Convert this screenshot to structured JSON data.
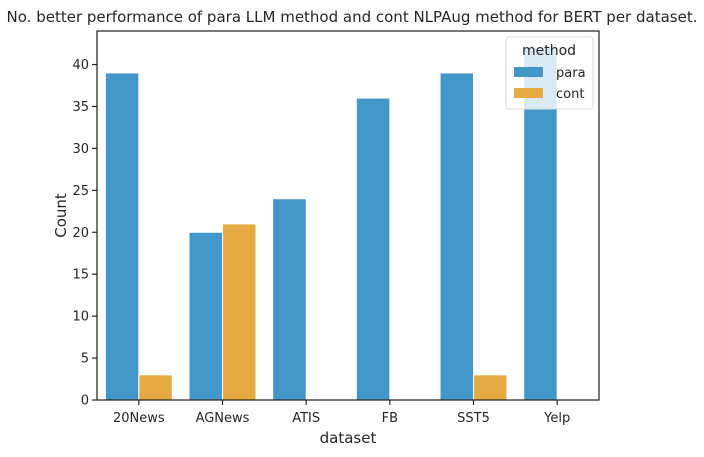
{
  "chart_data": {
    "type": "bar",
    "title": "No. better performance of para LLM method and cont NLPAug method for BERT per dataset.",
    "xlabel": "dataset",
    "ylabel": "Count",
    "categories": [
      "20News",
      "AGNews",
      "ATIS",
      "FB",
      "SST5",
      "Yelp"
    ],
    "series": [
      {
        "name": "para",
        "color": "#4097C8",
        "values": [
          39,
          20,
          24,
          36,
          39,
          42
        ]
      },
      {
        "name": "cont",
        "color": "#E5AA42",
        "values": [
          3,
          21,
          0,
          0,
          3,
          0
        ]
      }
    ],
    "ylim": [
      0,
      44
    ],
    "yticks": [
      0,
      5,
      10,
      15,
      20,
      25,
      30,
      35,
      40
    ],
    "legend": {
      "title": "method",
      "placement": "top-right"
    },
    "grid": false
  }
}
